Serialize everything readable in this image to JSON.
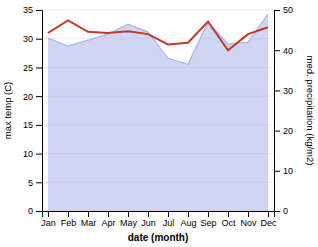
{
  "chart_data": {
    "type": "line",
    "categories": [
      "Jan",
      "Feb",
      "Mar",
      "Apr",
      "May",
      "Jun",
      "Jul",
      "Aug",
      "Sep",
      "Oct",
      "Nov",
      "Dec"
    ],
    "series": [
      {
        "type": "line",
        "color": "#c0392b",
        "values": [
          31.0,
          33.2,
          31.2,
          31.0,
          31.3,
          30.8,
          29.0,
          29.3,
          33.0,
          28.0,
          30.8,
          32.0
        ]
      },
      {
        "type": "area",
        "axis": "y2",
        "color": "#aab4e8",
        "values": [
          43.0,
          41.0,
          42.5,
          44.0,
          46.5,
          44.5,
          38.0,
          36.5,
          47.0,
          41.5,
          42.0,
          49.0
        ]
      }
    ],
    "xlabel": "date (month)",
    "ylabel": "max temp (C)",
    "y2label": "med. precipitation (kg/m2)",
    "ylim": [
      0,
      35
    ],
    "yticks": [
      0,
      5,
      10,
      15,
      20,
      25,
      30,
      35
    ],
    "y2lim": [
      0,
      50
    ],
    "y2ticks": [
      0,
      10,
      20,
      30,
      40,
      50
    ],
    "grid": true
  }
}
